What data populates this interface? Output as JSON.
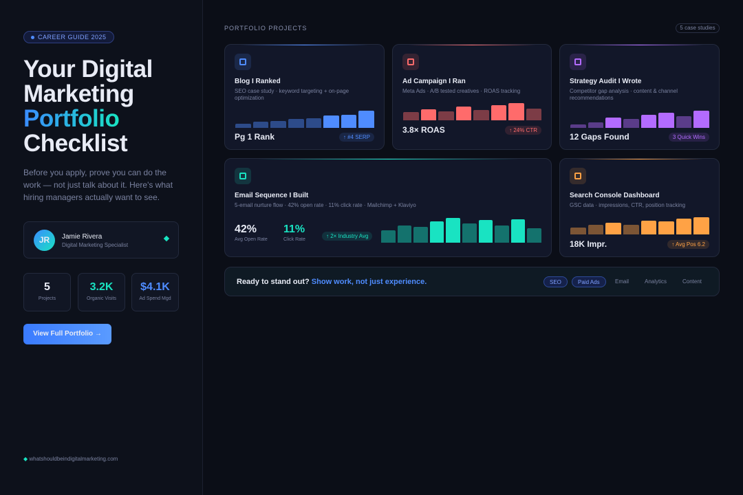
{
  "sidebar": {
    "badge": "CAREER GUIDE 2025",
    "title_lines": [
      "Your Digital",
      "Marketing",
      "Portfolio",
      "Checklist"
    ],
    "intro": "Before you apply, prove you can do the work — not just talk about it. Here's what hiring managers actually want to see.",
    "profile": {
      "initials": "JR",
      "name": "Jamie Rivera",
      "role": "Digital Marketing Specialist"
    },
    "stats": [
      {
        "value": "5",
        "label": "Projects"
      },
      {
        "value": "3.2K",
        "label": "Organic Visits"
      },
      {
        "value": "$4.1K",
        "label": "Ad Spend Mgd"
      }
    ],
    "button": "View Full Portfolio →",
    "footer": "whatshouldbeindigitalmarketing.com"
  },
  "main": {
    "heading": "PORTFOLIO PROJECTS",
    "count": "5 case studies",
    "cards": [
      {
        "title": "Blog I Ranked",
        "desc": "SEO case study · keyword targeting + on-page optimization",
        "metric": "Pg 1 Rank",
        "tag": "↑ #4 SERP",
        "color": "#4f8cff",
        "bars": [
          6,
          9,
          10,
          13,
          14,
          18,
          19,
          25
        ],
        "highlight": [
          5,
          6,
          7
        ]
      },
      {
        "title": "Ad Campaign I Ran",
        "desc": "Meta Ads · A/B tested creatives · ROAS tracking",
        "metric": "3.8× ROAS",
        "tag": "↑ 24% CTR",
        "color": "#ff6b6b",
        "bars": [
          12,
          16,
          13,
          20,
          15,
          22,
          25,
          17
        ],
        "highlight": [
          1,
          3,
          5,
          6
        ]
      },
      {
        "title": "Strategy Audit I Wrote",
        "desc": "Competitor gap analysis · content & channel recommendations",
        "metric": "12 Gaps Found",
        "tag": "3 Quick Wins",
        "color": "#b36bff",
        "bars": [
          5,
          8,
          15,
          13,
          19,
          22,
          17,
          25
        ],
        "highlight": [
          2,
          4,
          5,
          7
        ]
      },
      {
        "title": "Email Sequence I Built",
        "desc": "5-email nurture flow · 42% open rate · 11% click rate · Mailchimp + Klaviyo",
        "metrics": [
          {
            "value": "42%",
            "label": "Avg Open Rate"
          },
          {
            "value": "11%",
            "label": "Click Rate"
          }
        ],
        "tag": "↑ 2× Industry Avg",
        "color": "#19e3c2",
        "bars": [
          18,
          25,
          23,
          31,
          36,
          28,
          33,
          25,
          34,
          21
        ],
        "highlight": [
          3,
          4,
          6,
          8
        ]
      },
      {
        "title": "Search Console Dashboard",
        "desc": "GSC data · impressions, CTR, position tracking",
        "metric": "18K Impr.",
        "tag": "↑ Avg Pos 6.2",
        "color": "#ffa245",
        "bars": [
          10,
          14,
          17,
          14,
          20,
          19,
          23,
          25
        ],
        "highlight": [
          2,
          4,
          5,
          6,
          7
        ]
      }
    ],
    "cta": {
      "lead": "Ready to stand out?",
      "accent": "Show work, not just experience.",
      "pills": [
        "SEO",
        "Paid Ads",
        "Email",
        "Analytics",
        "Content"
      ]
    }
  }
}
